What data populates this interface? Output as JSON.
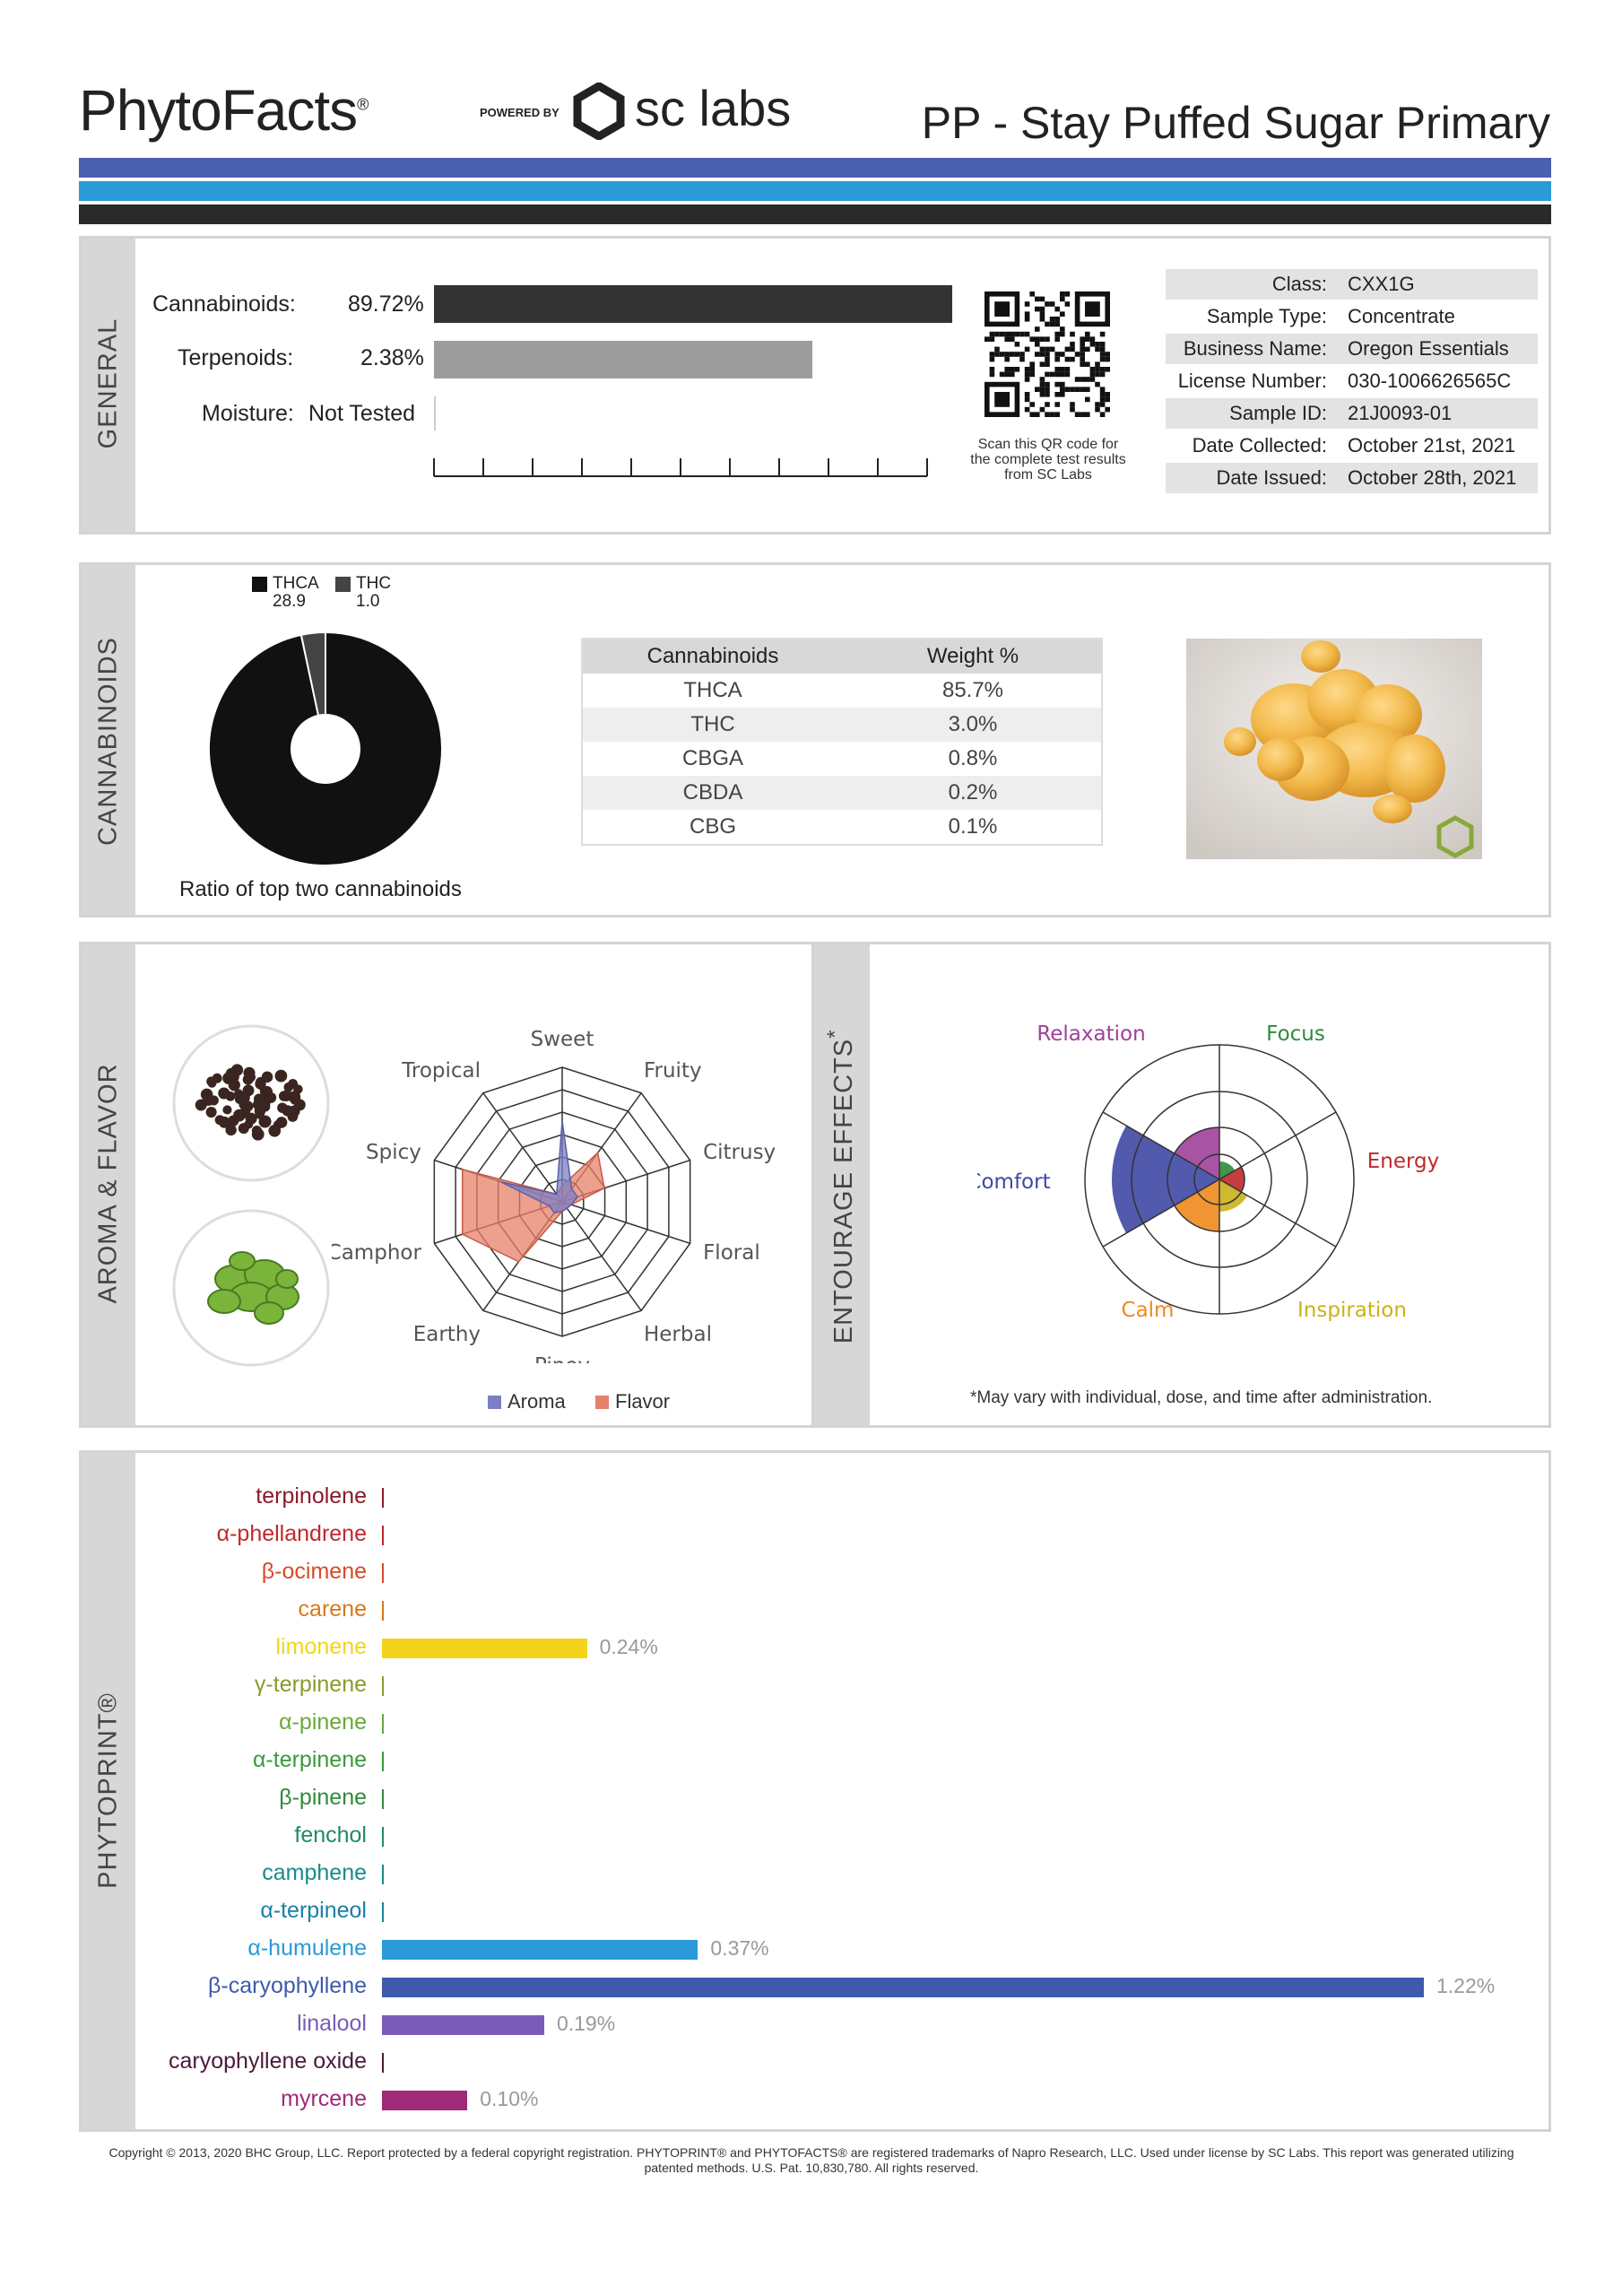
{
  "header": {
    "brand": "PhytoFacts",
    "powered_by": "POWERED BY",
    "lab_logo_text": "sc labs",
    "product_title": "PP - Stay Puffed Sugar Primary"
  },
  "general": {
    "section_label": "GENERAL",
    "cannabinoids_label": "Cannabinoids:",
    "cannabinoids_value": "89.72%",
    "cannabinoids_pct": 89.72,
    "terpenoids_label": "Terpenoids:",
    "terpenoids_value": "2.38%",
    "terpenoids_pct": 2.38,
    "moisture_label": "Moisture:",
    "moisture_value": "Not Tested",
    "qr_caption": "Scan this QR code for the complete test results from SC Labs",
    "info": [
      {
        "key": "Class:",
        "value": "CXX1G"
      },
      {
        "key": "Sample Type:",
        "value": "Concentrate"
      },
      {
        "key": "Business Name:",
        "value": "Oregon Essentials"
      },
      {
        "key": "License Number:",
        "value": "030-1006626565C"
      },
      {
        "key": "Sample ID:",
        "value": "21J0093-01"
      },
      {
        "key": "Date Collected:",
        "value": "October 21st, 2021"
      },
      {
        "key": "Date Issued:",
        "value": "October 28th, 2021"
      }
    ]
  },
  "cannabinoids": {
    "section_label": "CANNABINOIDS",
    "legend": [
      {
        "name": "THCA",
        "value": "28.9",
        "color": "#111111"
      },
      {
        "name": "THC",
        "value": "1.0",
        "color": "#444444"
      }
    ],
    "ratio_caption": "Ratio of top two cannabinoids",
    "table_headers": [
      "Cannabinoids",
      "Weight %"
    ],
    "table_rows": [
      [
        "THCA",
        "85.7%"
      ],
      [
        "THC",
        "3.0%"
      ],
      [
        "CBGA",
        "0.8%"
      ],
      [
        "CBDA",
        "0.2%"
      ],
      [
        "CBG",
        "0.1%"
      ]
    ]
  },
  "aroma": {
    "section_label": "AROMA & FLAVOR",
    "axes": [
      "Sweet",
      "Fruity",
      "Citrusy",
      "Floral",
      "Herbal",
      "Piney",
      "Earthy",
      "Camphor",
      "Spicy",
      "Tropical"
    ],
    "legend": [
      {
        "name": "Aroma",
        "color": "#7b7fc4"
      },
      {
        "name": "Flavor",
        "color": "#e8806a"
      }
    ]
  },
  "effects": {
    "section_label": "ENTOURAGE EFFECTS",
    "labels": [
      {
        "name": "Relaxation",
        "color": "#a0409a"
      },
      {
        "name": "Focus",
        "color": "#2e8b3a"
      },
      {
        "name": "Energy",
        "color": "#c0282a"
      },
      {
        "name": "Inspiration",
        "color": "#c9b21a"
      },
      {
        "name": "Calm",
        "color": "#ef8a1c"
      },
      {
        "name": "Comfort",
        "color": "#3f48a4"
      }
    ],
    "note": "*May vary with individual, dose, and time after administration."
  },
  "phytoprint": {
    "section_label": "PHYTOPRINT®",
    "terpenes": [
      {
        "name": "terpinolene",
        "value": "",
        "pct": 0,
        "color": "#8b1a2b"
      },
      {
        "name": "α-phellandrene",
        "value": "",
        "pct": 0,
        "color": "#c0282a"
      },
      {
        "name": "β-ocimene",
        "value": "",
        "pct": 0,
        "color": "#d84a2a"
      },
      {
        "name": "carene",
        "value": "",
        "pct": 0,
        "color": "#d9781c"
      },
      {
        "name": "limonene",
        "value": "0.24%",
        "pct": 0.24,
        "color": "#f4d41a"
      },
      {
        "name": "γ-terpinene",
        "value": "",
        "pct": 0,
        "color": "#8c9a2a"
      },
      {
        "name": "α-pinene",
        "value": "",
        "pct": 0,
        "color": "#6aa83a"
      },
      {
        "name": "α-terpinene",
        "value": "",
        "pct": 0,
        "color": "#3a9a3a"
      },
      {
        "name": "β-pinene",
        "value": "",
        "pct": 0,
        "color": "#2e8b3a"
      },
      {
        "name": "fenchol",
        "value": "",
        "pct": 0,
        "color": "#1e8a6a"
      },
      {
        "name": "camphene",
        "value": "",
        "pct": 0,
        "color": "#1a8a8a"
      },
      {
        "name": "α-terpineol",
        "value": "",
        "pct": 0,
        "color": "#1a80a8"
      },
      {
        "name": "α-humulene",
        "value": "0.37%",
        "pct": 0.37,
        "color": "#2a9ad8"
      },
      {
        "name": "β-caryophyllene",
        "value": "1.22%",
        "pct": 1.22,
        "color": "#3f5aac"
      },
      {
        "name": "linalool",
        "value": "0.19%",
        "pct": 0.19,
        "color": "#7a5cb8"
      },
      {
        "name": "caryophyllene oxide",
        "value": "",
        "pct": 0,
        "color": "#4a1a3a"
      },
      {
        "name": "myrcene",
        "value": "0.10%",
        "pct": 0.1,
        "color": "#a02a7a"
      }
    ]
  },
  "footer": {
    "copyright": "Copyright © 2013, 2020 BHC Group, LLC. Report protected by a federal copyright registration. PHYTOPRINT® and PHYTOFACTS® are registered trademarks of Napro Research, LLC. Used under license by SC Labs. This report was generated utilizing patented methods. U.S. Pat. 10,830,780. All rights reserved."
  }
}
